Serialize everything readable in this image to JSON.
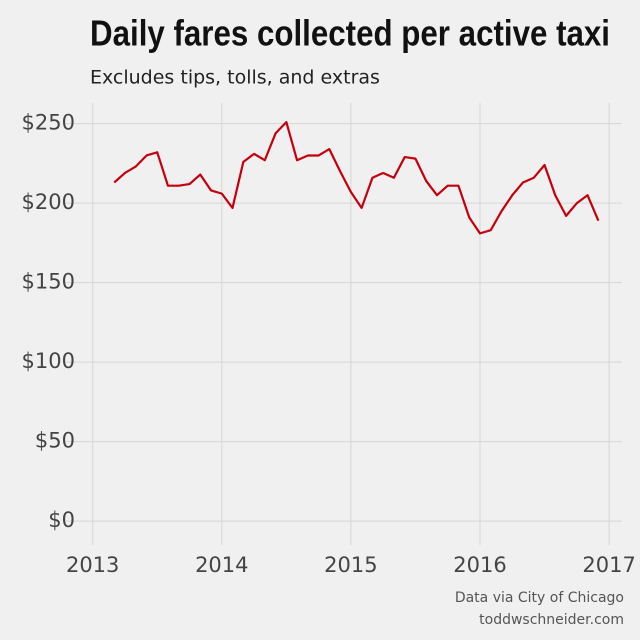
{
  "chart_data": {
    "type": "line",
    "title": "Daily fares collected per active taxi",
    "subtitle": "Excludes tips, tolls, and extras",
    "source": "Data via City of Chicago",
    "credit": "toddwschneider.com",
    "x": [
      2013.167,
      2013.25,
      2013.333,
      2013.417,
      2013.5,
      2013.583,
      2013.667,
      2013.75,
      2013.833,
      2013.917,
      2014.0,
      2014.083,
      2014.167,
      2014.25,
      2014.333,
      2014.417,
      2014.5,
      2014.583,
      2014.667,
      2014.75,
      2014.833,
      2014.917,
      2015.0,
      2015.083,
      2015.167,
      2015.25,
      2015.333,
      2015.417,
      2015.5,
      2015.583,
      2015.667,
      2015.75,
      2015.833,
      2015.917,
      2016.0,
      2016.083,
      2016.167,
      2016.25,
      2016.333,
      2016.417,
      2016.5,
      2016.583,
      2016.667,
      2016.75,
      2016.833,
      2016.917
    ],
    "series": [
      {
        "color": "#c4000e",
        "values": [
          213,
          219,
          223,
          230,
          232,
          211,
          211,
          212,
          218,
          208,
          206,
          197,
          226,
          231,
          227,
          244,
          251,
          227,
          230,
          230,
          234,
          220,
          207,
          197,
          216,
          219,
          216,
          229,
          228,
          214,
          205,
          211,
          211,
          191,
          181,
          183,
          195,
          205,
          213,
          216,
          224,
          205,
          192,
          200,
          205,
          189
        ]
      }
    ],
    "xlim": [
      2012.77,
      2017.1
    ],
    "xticks": [
      2013,
      2014,
      2015,
      2016,
      2017
    ],
    "ylim": [
      -15,
      263
    ],
    "yticks": [
      {
        "value": 0,
        "label": "$0"
      },
      {
        "value": 50,
        "label": "$50"
      },
      {
        "value": 100,
        "label": "$100"
      },
      {
        "value": 150,
        "label": "$150"
      },
      {
        "value": 200,
        "label": "$200"
      },
      {
        "value": 250,
        "label": "$250"
      }
    ],
    "grid": true
  }
}
